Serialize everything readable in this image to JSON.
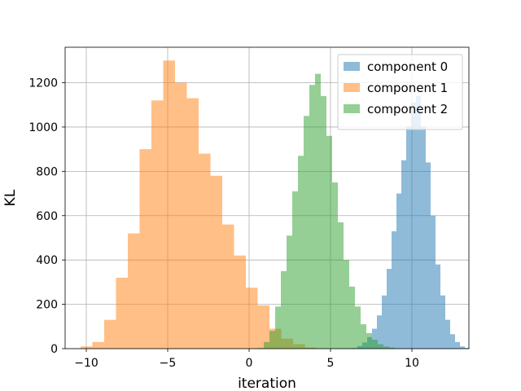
{
  "chart_data": {
    "type": "histogram",
    "xlabel": "iteration",
    "ylabel": "KL",
    "xlim": [
      -11.3,
      13.5
    ],
    "ylim": [
      0,
      1360
    ],
    "xticks": [
      -10,
      -5,
      0,
      5,
      10
    ],
    "xtick_labels": [
      "−10",
      "−5",
      "0",
      "5",
      "10"
    ],
    "yticks": [
      0,
      200,
      400,
      600,
      800,
      1000,
      1200
    ],
    "ytick_labels": [
      "0",
      "200",
      "400",
      "600",
      "800",
      "1000",
      "1200"
    ],
    "grid": true,
    "legend_position": "top-right",
    "alpha": 0.5,
    "series": [
      {
        "name": "component 0",
        "color": "#1f77b4",
        "bin_start": 6.35,
        "bin_width": 0.3,
        "counts": [
          3,
          12,
          28,
          52,
          90,
          150,
          240,
          360,
          530,
          700,
          850,
          1000,
          1110,
          1140,
          1000,
          840,
          600,
          380,
          240,
          130,
          65,
          30,
          10,
          3
        ]
      },
      {
        "name": "component 1",
        "color": "#ff7f0e",
        "bin_start": -10.35,
        "bin_width": 0.725,
        "counts": [
          10,
          30,
          130,
          320,
          520,
          900,
          1120,
          1300,
          1200,
          1130,
          880,
          780,
          560,
          420,
          275,
          195,
          90,
          45,
          20,
          5
        ]
      },
      {
        "name": "component 2",
        "color": "#2ca02c",
        "bin_start": 0.55,
        "bin_width": 0.35,
        "counts": [
          3,
          30,
          80,
          190,
          350,
          510,
          710,
          870,
          1050,
          1190,
          1240,
          1140,
          960,
          750,
          570,
          400,
          280,
          190,
          110,
          70,
          40,
          20,
          10,
          5,
          2,
          1
        ]
      }
    ]
  }
}
